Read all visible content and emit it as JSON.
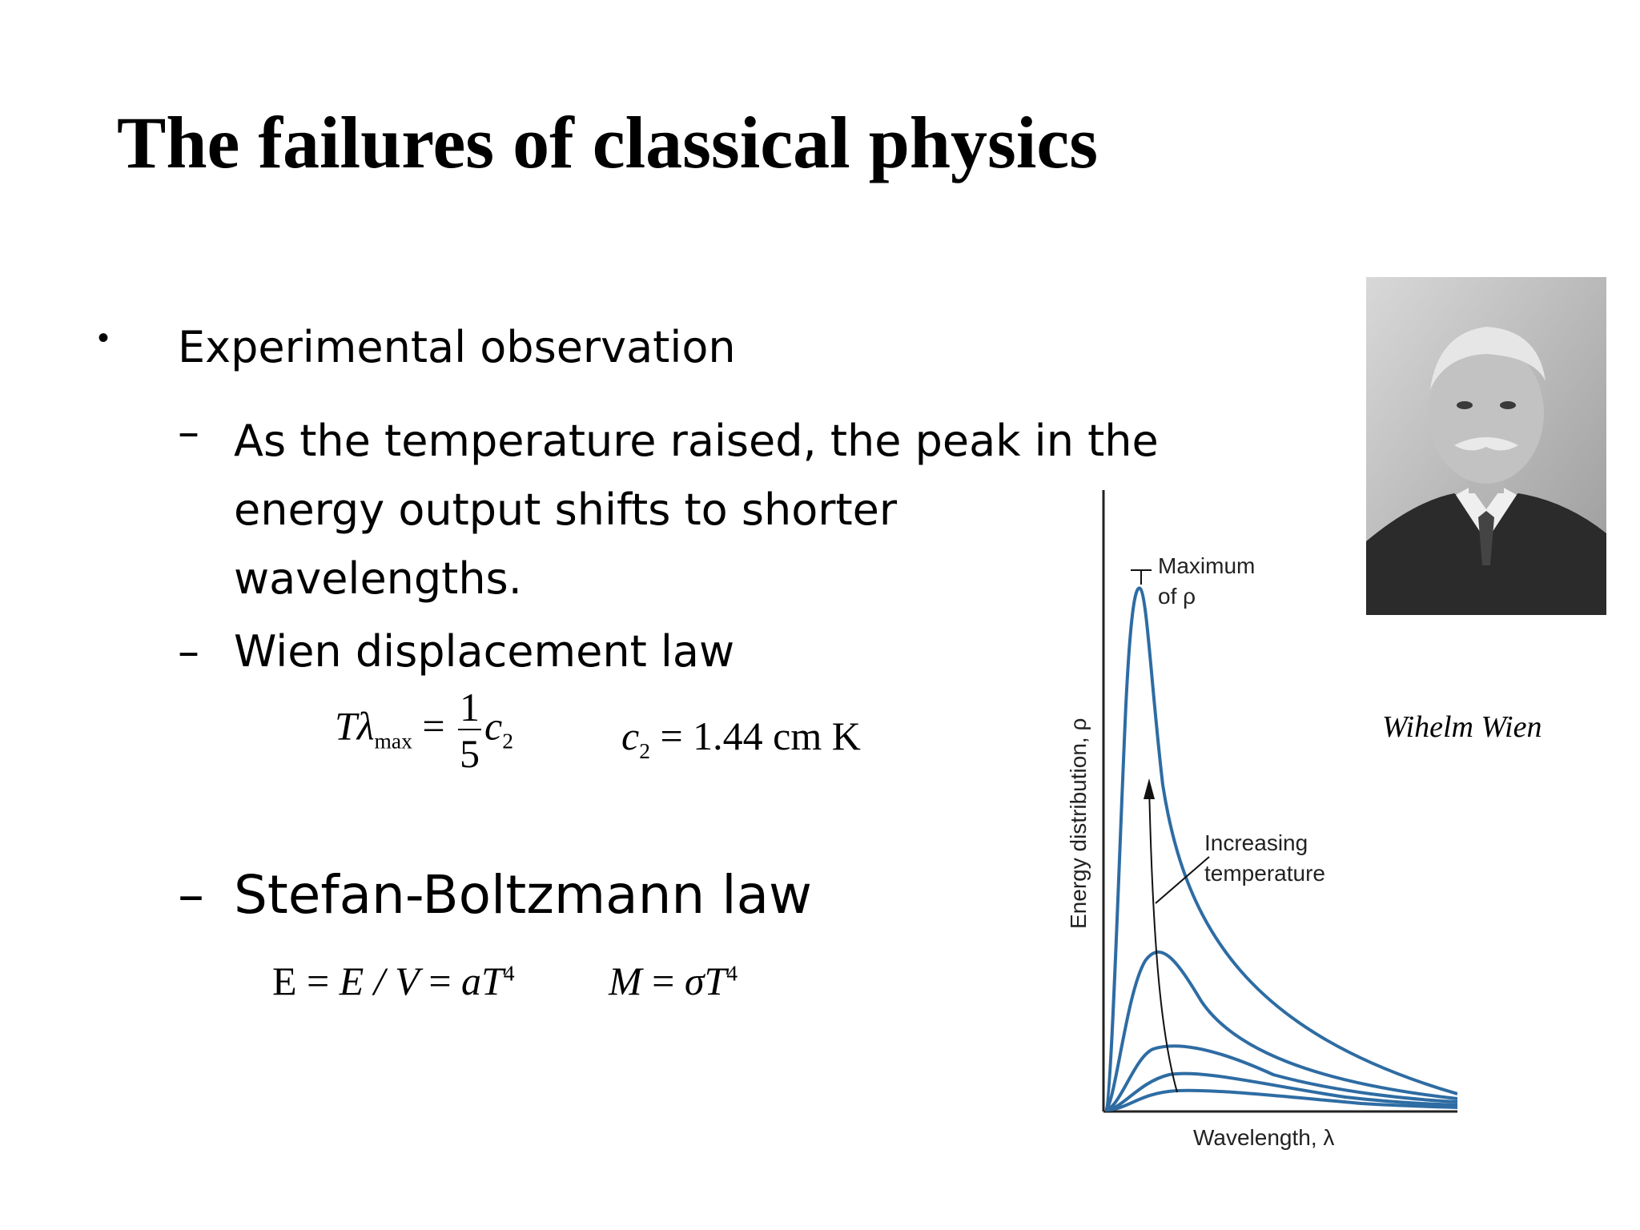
{
  "slide": {
    "title": "The failures of classical physics",
    "bullet_symbol": "•",
    "dash_symbol": "–",
    "bullet": "Experimental observation",
    "sub_items": [
      "As the temperature raised, the peak in the energy output shifts to shorter wavelengths.",
      "Wien displacement law",
      "Stefan-Boltzmann law"
    ]
  },
  "equations": {
    "wien": {
      "lhs_T": "T",
      "lhs_lambda": "λ",
      "lhs_sub": "max",
      "eq": "=",
      "frac_num": "1",
      "frac_den": "5",
      "rhs": "c",
      "rhs_sub": "2"
    },
    "c2": {
      "sym": "c",
      "sub": "2",
      "eq": "=",
      "value": "1.44",
      "unit": "cm K"
    },
    "stefan": {
      "E": "E",
      "eq1": "=",
      "part2": "E / V",
      "eq2": "=",
      "aT": "aT",
      "sup": "4"
    },
    "emittance": {
      "M": "M",
      "eq": "=",
      "sigmaT": "σT",
      "sup": "4"
    }
  },
  "portrait": {
    "caption": "Wihelm Wien"
  },
  "graph": {
    "annotation_max_line1": "Maximum",
    "annotation_max_line2": "of ρ",
    "annotation_temp_line1": "Increasing",
    "annotation_temp_line2": "temperature",
    "xlabel": "Wavelength, λ",
    "ylabel": "Energy distribution, ρ",
    "curve_color": "#2e6ca3"
  }
}
